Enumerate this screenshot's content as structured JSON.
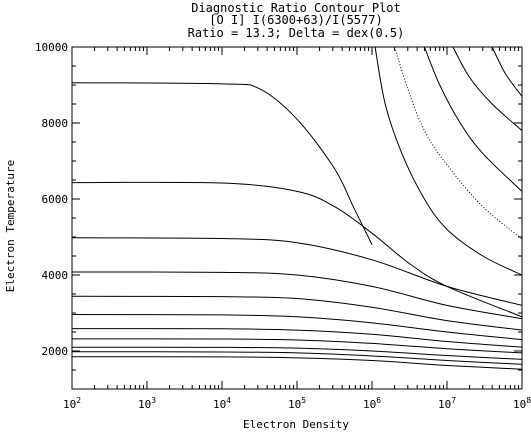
{
  "chart_data": {
    "type": "line",
    "title_lines": [
      "Diagnostic Ratio Contour Plot",
      "[O I] I(6300+63)/I(5577)",
      "Ratio = 13.3; Delta = dex(0.5)"
    ],
    "xlabel": "Electron Density",
    "ylabel": "Electron Temperature",
    "x_scale": "log",
    "xlim": [
      100,
      100000000
    ],
    "ylim": [
      1000,
      10000
    ],
    "x_ticks": [
      {
        "base": "10",
        "exp": "2"
      },
      {
        "base": "10",
        "exp": "3"
      },
      {
        "base": "10",
        "exp": "4"
      },
      {
        "base": "10",
        "exp": "5"
      },
      {
        "base": "10",
        "exp": "6"
      },
      {
        "base": "10",
        "exp": "7"
      },
      {
        "base": "10",
        "exp": "8"
      }
    ],
    "y_ticks": [
      "2000",
      "4000",
      "6000",
      "8000",
      "10000"
    ],
    "y_tick_values": [
      2000,
      4000,
      6000,
      8000,
      10000
    ],
    "grid": false,
    "series": [
      {
        "style": "solid",
        "x": [
          100,
          10000,
          31623,
          100000,
          316228,
          562341,
          1000000
        ],
        "y": [
          9060,
          9030,
          8900,
          8100,
          6800,
          5800,
          4800
        ]
      },
      {
        "style": "solid",
        "x": [
          100,
          10000,
          100000,
          316228,
          1000000,
          3162278,
          10000000,
          100000000
        ],
        "y": [
          6430,
          6420,
          6200,
          5800,
          5100,
          4300,
          3700,
          2900
        ]
      },
      {
        "style": "solid",
        "x": [
          100,
          10000,
          100000,
          1000000,
          10000000,
          100000000
        ],
        "y": [
          4980,
          4960,
          4850,
          4400,
          3700,
          3200
        ]
      },
      {
        "style": "solid",
        "x": [
          100,
          10000,
          100000,
          1000000,
          10000000,
          100000000
        ],
        "y": [
          4080,
          4070,
          4000,
          3700,
          3200,
          2850
        ]
      },
      {
        "style": "solid",
        "x": [
          100,
          10000,
          100000,
          1000000,
          10000000,
          100000000
        ],
        "y": [
          3440,
          3430,
          3380,
          3150,
          2800,
          2550
        ]
      },
      {
        "style": "solid",
        "x": [
          100,
          10000,
          100000,
          1000000,
          10000000,
          100000000
        ],
        "y": [
          2960,
          2950,
          2900,
          2740,
          2500,
          2300
        ]
      },
      {
        "style": "solid",
        "x": [
          100,
          10000,
          100000,
          1000000,
          10000000,
          100000000
        ],
        "y": [
          2590,
          2585,
          2550,
          2440,
          2250,
          2100
        ]
      },
      {
        "style": "solid",
        "x": [
          100,
          10000,
          100000,
          1000000,
          10000000,
          100000000
        ],
        "y": [
          2320,
          2315,
          2290,
          2200,
          2060,
          1950
        ]
      },
      {
        "style": "solid",
        "x": [
          100,
          10000,
          100000,
          1000000,
          10000000,
          100000000
        ],
        "y": [
          2100,
          2095,
          2075,
          2000,
          1880,
          1780
        ]
      },
      {
        "style": "solid",
        "x": [
          100,
          10000,
          100000,
          1000000,
          10000000,
          100000000
        ],
        "y": [
          1980,
          1975,
          1950,
          1870,
          1750,
          1650
        ]
      },
      {
        "style": "solid",
        "x": [
          100,
          10000,
          100000,
          1000000,
          10000000,
          100000000
        ],
        "y": [
          1850,
          1845,
          1820,
          1750,
          1620,
          1520
        ]
      },
      {
        "style": "solid",
        "x": [
          1100000,
          1500000,
          2500000,
          5000000,
          10000000,
          30000000,
          100000000
        ],
        "y": [
          10000,
          8500,
          7200,
          6000,
          5200,
          4500,
          4000
        ]
      },
      {
        "style": "dotted",
        "x": [
          2000000,
          3000000,
          5000000,
          10000000,
          30000000,
          100000000
        ],
        "y": [
          10000,
          8900,
          7800,
          6900,
          5800,
          4950
        ]
      },
      {
        "style": "solid",
        "x": [
          5000000,
          8000000,
          15000000,
          30000000,
          100000000
        ],
        "y": [
          10000,
          9000,
          8000,
          7200,
          6200
        ]
      },
      {
        "style": "solid",
        "x": [
          12000000,
          20000000,
          40000000,
          100000000
        ],
        "y": [
          10000,
          9200,
          8500,
          7800
        ]
      },
      {
        "style": "solid",
        "x": [
          40000000,
          60000000,
          100000000
        ],
        "y": [
          10000,
          9300,
          8700
        ]
      }
    ]
  }
}
